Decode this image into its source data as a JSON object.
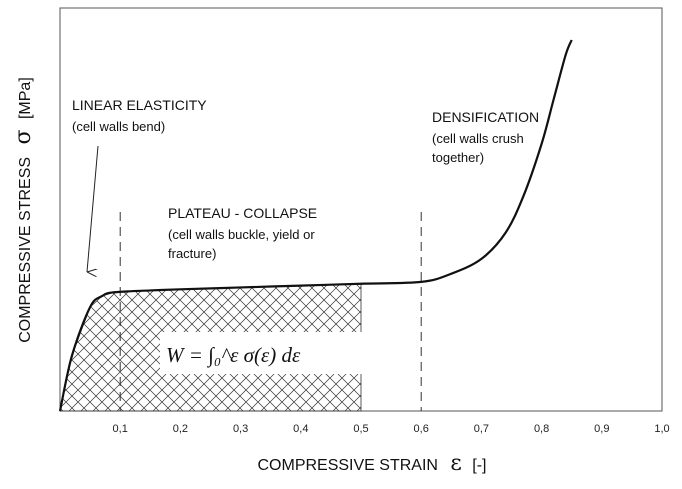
{
  "chart_data": {
    "type": "line",
    "title": "",
    "xlabel": "COMPRESSIVE STRAIN",
    "xlabel_symbol": "ε",
    "xlabel_unit": "[-]",
    "ylabel": "COMPRESSIVE STRESS",
    "ylabel_symbol": "σ",
    "ylabel_unit": "[MPa]",
    "xlim": [
      0,
      1.0
    ],
    "ylim": [
      0,
      1.0
    ],
    "x_ticks": [
      "0,1",
      "0,2",
      "0,3",
      "0,4",
      "0,5",
      "0,6",
      "0,7",
      "0,8",
      "0,9",
      "1,0"
    ],
    "y_ticks_shown": false,
    "grid": false,
    "legend": "none",
    "series": [
      {
        "x": [
          0,
          0.02,
          0.05,
          0.07,
          0.09,
          0.15,
          0.2,
          0.3,
          0.4,
          0.5,
          0.6,
          0.65,
          0.7,
          0.74,
          0.77,
          0.8,
          0.82,
          0.84,
          0.85
        ],
        "y": [
          0,
          0.15,
          0.28,
          0.31,
          0.32,
          0.325,
          0.328,
          0.333,
          0.338,
          0.343,
          0.348,
          0.37,
          0.41,
          0.48,
          0.58,
          0.72,
          0.84,
          0.96,
          1.0
        ]
      }
    ],
    "boundaries": [
      {
        "x": 0.1,
        "style": "dashed"
      },
      {
        "x": 0.6,
        "style": "dashed"
      }
    ],
    "shaded_region": {
      "x_from": 0,
      "x_to": 0.5,
      "pattern": "crosshatch"
    },
    "formula": "W = ∫₀^ε σ(ε) dε",
    "annotations": [
      {
        "title": "LINEAR ELASTICITY",
        "subtitle": "(cell walls bend)"
      },
      {
        "title": "PLATEAU - COLLAPSE",
        "subtitle": "(cell walls buckle, yield or",
        "subtitle2": "fracture)"
      },
      {
        "title": "DENSIFICATION",
        "subtitle": "(cell walls crush",
        "subtitle2": "together)"
      }
    ],
    "colors": {
      "curve": "#111111",
      "hatch": "#333333",
      "axis": "#444444"
    }
  }
}
